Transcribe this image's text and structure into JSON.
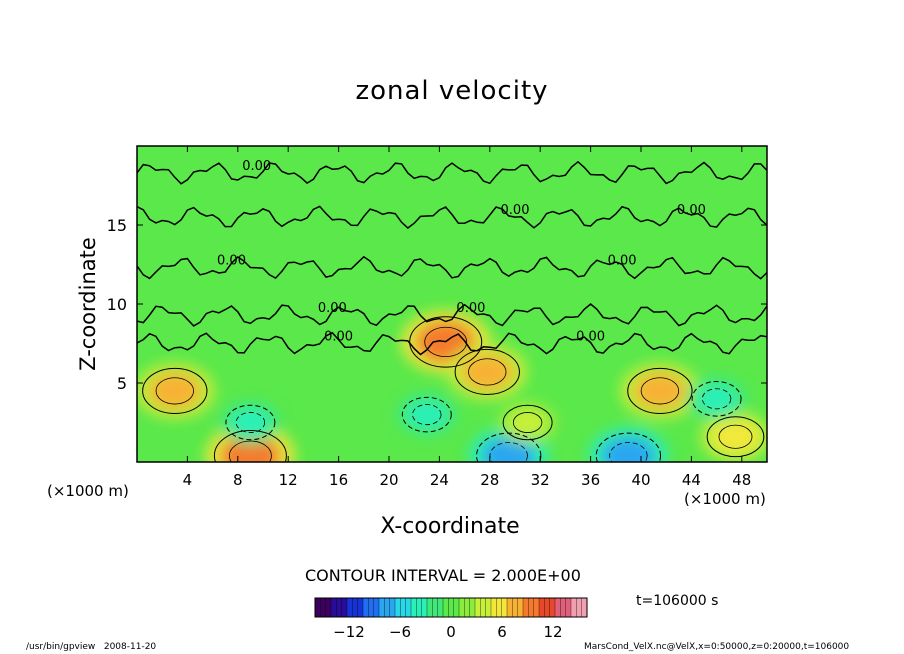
{
  "chart_data": {
    "type": "heatmap",
    "title": "zonal velocity",
    "xlabel": "X-coordinate",
    "ylabel": "Z-coordinate",
    "x_unit": "(×1000 m)",
    "xlim": [
      0,
      50
    ],
    "ylim": [
      0,
      20
    ],
    "x_ticks": [
      4,
      8,
      12,
      16,
      20,
      24,
      28,
      32,
      36,
      40,
      44,
      48
    ],
    "y_ticks": [
      5,
      10,
      15
    ],
    "contour_interval": "CONTOUR INTERVAL = 2.000E+00",
    "contour_label": "0.00",
    "colorbar": {
      "range": [
        -16,
        16
      ],
      "ticks": [
        -12,
        -6,
        0,
        6,
        12
      ],
      "colors": [
        "#3d005c",
        "#2a0c9a",
        "#1633d8",
        "#1f6ff0",
        "#2aa6f0",
        "#28d7e8",
        "#2af0b8",
        "#3fe878",
        "#5ae84a",
        "#8aec3c",
        "#c7f03a",
        "#f3e83a",
        "#f7b234",
        "#f47a2e",
        "#e8482a",
        "#e0607a",
        "#f0a0b0"
      ]
    },
    "features": [
      {
        "x": 3,
        "z": 4.5,
        "value": 8
      },
      {
        "x": 9,
        "z": 0.4,
        "value": 10
      },
      {
        "x": 24.5,
        "z": 7.6,
        "value": 10
      },
      {
        "x": 27.8,
        "z": 5.7,
        "value": 8
      },
      {
        "x": 41.5,
        "z": 4.5,
        "value": 8
      },
      {
        "x": 23,
        "z": 3.0,
        "value": -4
      },
      {
        "x": 29.5,
        "z": 0.4,
        "value": -8
      },
      {
        "x": 39,
        "z": 0.4,
        "value": -8
      },
      {
        "x": 31,
        "z": 2.5,
        "value": 4
      },
      {
        "x": 47.5,
        "z": 1.6,
        "value": 6
      },
      {
        "x": 46,
        "z": 4.0,
        "value": -4
      },
      {
        "x": 9,
        "z": 2.5,
        "value": -4
      }
    ]
  },
  "time_label": "t=106000 s",
  "footer": {
    "program": "/usr/bin/gpview",
    "date": "2008-11-20",
    "source": "MarsCond_VelX.nc@VelX,x=0:50000,z=0:20000,t=106000"
  }
}
